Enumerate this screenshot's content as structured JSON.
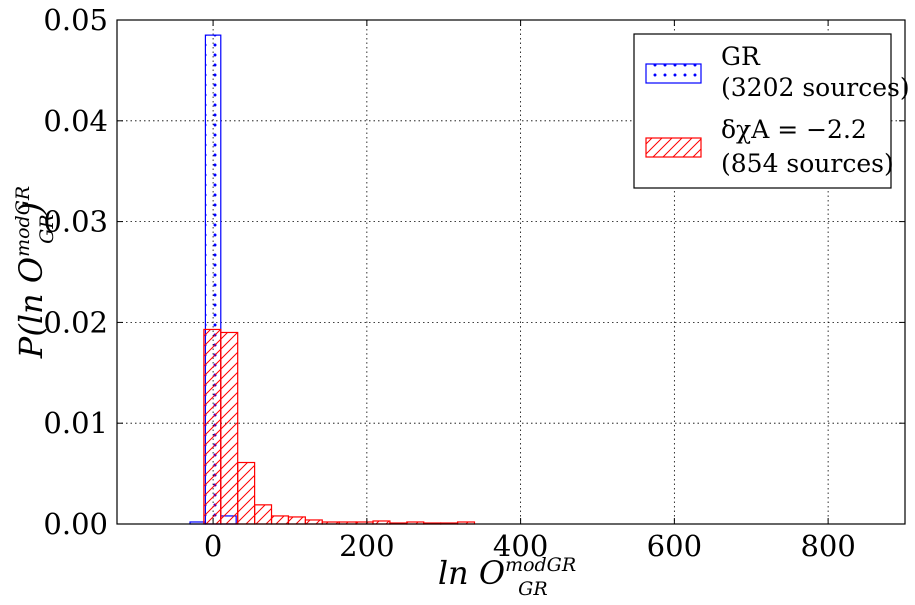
{
  "chart_data": {
    "type": "bar",
    "xlabel": "ln O",
    "xlabel_sup": "modGR",
    "xlabel_sub": "GR",
    "ylabel": "P(ln O",
    "ylabel_sup": "modGR",
    "ylabel_sub": "GR",
    "ylabel_close": ")",
    "xlim": [
      -125,
      900
    ],
    "ylim": [
      0,
      0.05
    ],
    "xticks": [
      0,
      200,
      400,
      600,
      800
    ],
    "xtick_labels": [
      "0",
      "200",
      "400",
      "600",
      "800"
    ],
    "yticks": [
      0,
      0.01,
      0.02,
      0.03,
      0.04,
      0.05
    ],
    "ytick_labels": [
      "0.00",
      "0.01",
      "0.02",
      "0.03",
      "0.04",
      "0.05"
    ],
    "grid": true,
    "legend_position": "top-right",
    "series": [
      {
        "name": "GR",
        "name_line2": "(3202 sources)",
        "color": "#0000ff",
        "hatch": "dots",
        "bins": [
          {
            "x0": -30,
            "x1": -10,
            "value": 0.0002
          },
          {
            "x0": -10,
            "x1": 10,
            "value": 0.0485
          },
          {
            "x0": 10,
            "x1": 30,
            "value": 0.0008
          }
        ]
      },
      {
        "name": "δχA = −2.2",
        "name_line2": "(854 sources)",
        "color": "#ff0000",
        "hatch": "diagonal",
        "bins": [
          {
            "x0": -12,
            "x1": 10,
            "value": 0.0193
          },
          {
            "x0": 10,
            "x1": 32,
            "value": 0.019
          },
          {
            "x0": 32,
            "x1": 54,
            "value": 0.0061
          },
          {
            "x0": 54,
            "x1": 76,
            "value": 0.0019
          },
          {
            "x0": 76,
            "x1": 98,
            "value": 0.0008
          },
          {
            "x0": 98,
            "x1": 120,
            "value": 0.0007
          },
          {
            "x0": 120,
            "x1": 142,
            "value": 0.0004
          },
          {
            "x0": 142,
            "x1": 164,
            "value": 0.0002
          },
          {
            "x0": 164,
            "x1": 186,
            "value": 0.0002
          },
          {
            "x0": 186,
            "x1": 208,
            "value": 0.0002
          },
          {
            "x0": 208,
            "x1": 230,
            "value": 0.0003
          },
          {
            "x0": 230,
            "x1": 252,
            "value": 0.0001
          },
          {
            "x0": 252,
            "x1": 274,
            "value": 0.0002
          },
          {
            "x0": 274,
            "x1": 296,
            "value": 0.0001
          },
          {
            "x0": 296,
            "x1": 318,
            "value": 0.0001
          },
          {
            "x0": 318,
            "x1": 340,
            "value": 0.0002
          }
        ]
      }
    ]
  }
}
